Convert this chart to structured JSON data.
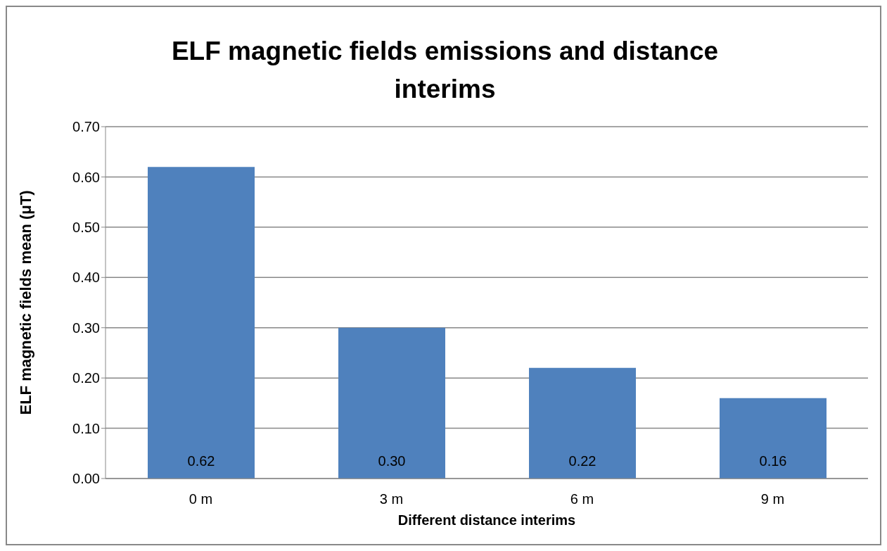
{
  "chart_data": {
    "type": "bar",
    "title": "ELF magnetic fields emissions and distance interims",
    "xlabel": "Different distance interims",
    "ylabel": "ELF magnetic fields mean (μT)",
    "categories": [
      "0 m",
      "3 m",
      "6 m",
      "9 m"
    ],
    "values": [
      0.62,
      0.3,
      0.22,
      0.16
    ],
    "value_labels": [
      "0.62",
      "0.30",
      "0.22",
      "0.16"
    ],
    "color": "#4f81bd",
    "ylim": [
      0,
      0.7
    ],
    "yticks": [
      {
        "value": 0,
        "label": "0.00"
      },
      {
        "value": 0.1,
        "label": "0.10"
      },
      {
        "value": 0.2,
        "label": "0.20"
      },
      {
        "value": 0.3,
        "label": "0.30"
      },
      {
        "value": 0.4,
        "label": "0.40"
      },
      {
        "value": 0.5,
        "label": "0.50"
      },
      {
        "value": 0.6,
        "label": "0.60"
      },
      {
        "value": 0.7,
        "label": "0.70"
      }
    ],
    "grid": "y"
  }
}
